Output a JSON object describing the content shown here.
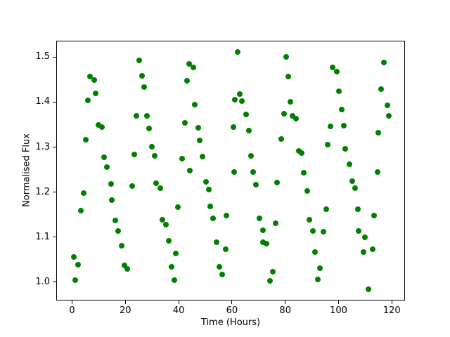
{
  "chart_data": {
    "type": "scatter",
    "title": "",
    "xlabel": "Time (Hours)",
    "ylabel": "Normalised Flux",
    "xlim": [
      -5.94,
      124.93
    ],
    "ylim": [
      0.959,
      1.5365
    ],
    "x_ticks": [
      0,
      20,
      40,
      60,
      80,
      100,
      120
    ],
    "y_ticks": [
      1.0,
      1.1,
      1.2,
      1.3,
      1.4,
      1.5
    ],
    "grid": false,
    "legend": null,
    "marker_color": "#008000",
    "axis_color": "#000000",
    "points": [
      [
        0.6,
        1.056
      ],
      [
        1.1,
        1.005
      ],
      [
        2.1,
        1.04
      ],
      [
        3.2,
        1.159
      ],
      [
        4.3,
        1.198
      ],
      [
        4.9,
        1.317
      ],
      [
        5.8,
        1.405
      ],
      [
        6.6,
        1.457
      ],
      [
        8.1,
        1.45
      ],
      [
        8.8,
        1.42
      ],
      [
        9.7,
        1.35
      ],
      [
        11.0,
        1.345
      ],
      [
        11.9,
        1.278
      ],
      [
        13.0,
        1.256
      ],
      [
        14.4,
        1.219
      ],
      [
        14.9,
        1.183
      ],
      [
        16.0,
        1.138
      ],
      [
        17.1,
        1.114
      ],
      [
        18.4,
        1.082
      ],
      [
        19.5,
        1.038
      ],
      [
        20.6,
        1.03
      ],
      [
        22.3,
        1.214
      ],
      [
        23.2,
        1.284
      ],
      [
        23.9,
        1.371
      ],
      [
        25.0,
        1.493
      ],
      [
        26.1,
        1.46
      ],
      [
        27.0,
        1.434
      ],
      [
        28.0,
        1.371
      ],
      [
        28.8,
        1.342
      ],
      [
        29.8,
        1.302
      ],
      [
        30.9,
        1.282
      ],
      [
        31.5,
        1.22
      ],
      [
        33.1,
        1.21
      ],
      [
        33.8,
        1.139
      ],
      [
        35.0,
        1.129
      ],
      [
        36.1,
        1.092
      ],
      [
        37.3,
        1.034
      ],
      [
        38.3,
        1.005
      ],
      [
        38.7,
        1.064
      ],
      [
        39.6,
        1.168
      ],
      [
        41.1,
        1.275
      ],
      [
        42.2,
        1.355
      ],
      [
        43.0,
        1.449
      ],
      [
        43.7,
        1.485
      ],
      [
        44.1,
        1.248
      ],
      [
        45.4,
        1.478
      ],
      [
        46.0,
        1.395
      ],
      [
        47.2,
        1.343
      ],
      [
        47.8,
        1.315
      ],
      [
        48.8,
        1.279
      ],
      [
        50.1,
        1.223
      ],
      [
        51.3,
        1.207
      ],
      [
        51.8,
        1.169
      ],
      [
        52.7,
        1.142
      ],
      [
        54.2,
        1.089
      ],
      [
        55.1,
        1.035
      ],
      [
        56.2,
        1.017
      ],
      [
        57.5,
        1.074
      ],
      [
        57.7,
        1.149
      ],
      [
        60.4,
        1.345
      ],
      [
        60.8,
        1.245
      ],
      [
        60.9,
        1.406
      ],
      [
        61.9,
        1.512
      ],
      [
        62.9,
        1.418
      ],
      [
        63.5,
        1.403
      ],
      [
        65.2,
        1.373
      ],
      [
        66.1,
        1.338
      ],
      [
        67.0,
        1.282
      ],
      [
        67.7,
        1.245
      ],
      [
        68.9,
        1.217
      ],
      [
        70.2,
        1.142
      ],
      [
        71.4,
        1.116
      ],
      [
        71.4,
        1.089
      ],
      [
        72.9,
        1.086
      ],
      [
        74.1,
        1.004
      ],
      [
        75.1,
        1.023
      ],
      [
        76.2,
        1.131
      ],
      [
        76.9,
        1.222
      ],
      [
        78.4,
        1.318
      ],
      [
        79.3,
        1.375
      ],
      [
        80.2,
        1.501
      ],
      [
        81.0,
        1.458
      ],
      [
        81.7,
        1.402
      ],
      [
        82.5,
        1.371
      ],
      [
        84.0,
        1.364
      ],
      [
        85.0,
        1.293
      ],
      [
        86.1,
        1.287
      ],
      [
        86.7,
        1.244
      ],
      [
        88.1,
        1.204
      ],
      [
        89.0,
        1.14
      ],
      [
        90.3,
        1.115
      ],
      [
        91.0,
        1.068
      ],
      [
        92.0,
        1.006
      ],
      [
        92.9,
        1.031
      ],
      [
        94.2,
        1.113
      ],
      [
        95.2,
        1.162
      ],
      [
        95.8,
        1.306
      ],
      [
        96.9,
        1.347
      ],
      [
        97.6,
        1.478
      ],
      [
        99.2,
        1.468
      ],
      [
        99.9,
        1.425
      ],
      [
        101.0,
        1.384
      ],
      [
        101.9,
        1.349
      ],
      [
        102.4,
        1.297
      ],
      [
        103.9,
        1.262
      ],
      [
        105.1,
        1.225
      ],
      [
        106.1,
        1.209
      ],
      [
        107.2,
        1.163
      ],
      [
        107.5,
        1.114
      ],
      [
        109.2,
        1.067
      ],
      [
        109.7,
        1.101
      ],
      [
        111.0,
        0.985
      ],
      [
        112.7,
        1.073
      ],
      [
        113.2,
        1.148
      ],
      [
        114.4,
        1.245
      ],
      [
        114.9,
        1.333
      ],
      [
        115.8,
        1.43
      ],
      [
        117.0,
        1.489
      ],
      [
        118.1,
        1.393
      ],
      [
        118.7,
        1.371
      ]
    ]
  }
}
